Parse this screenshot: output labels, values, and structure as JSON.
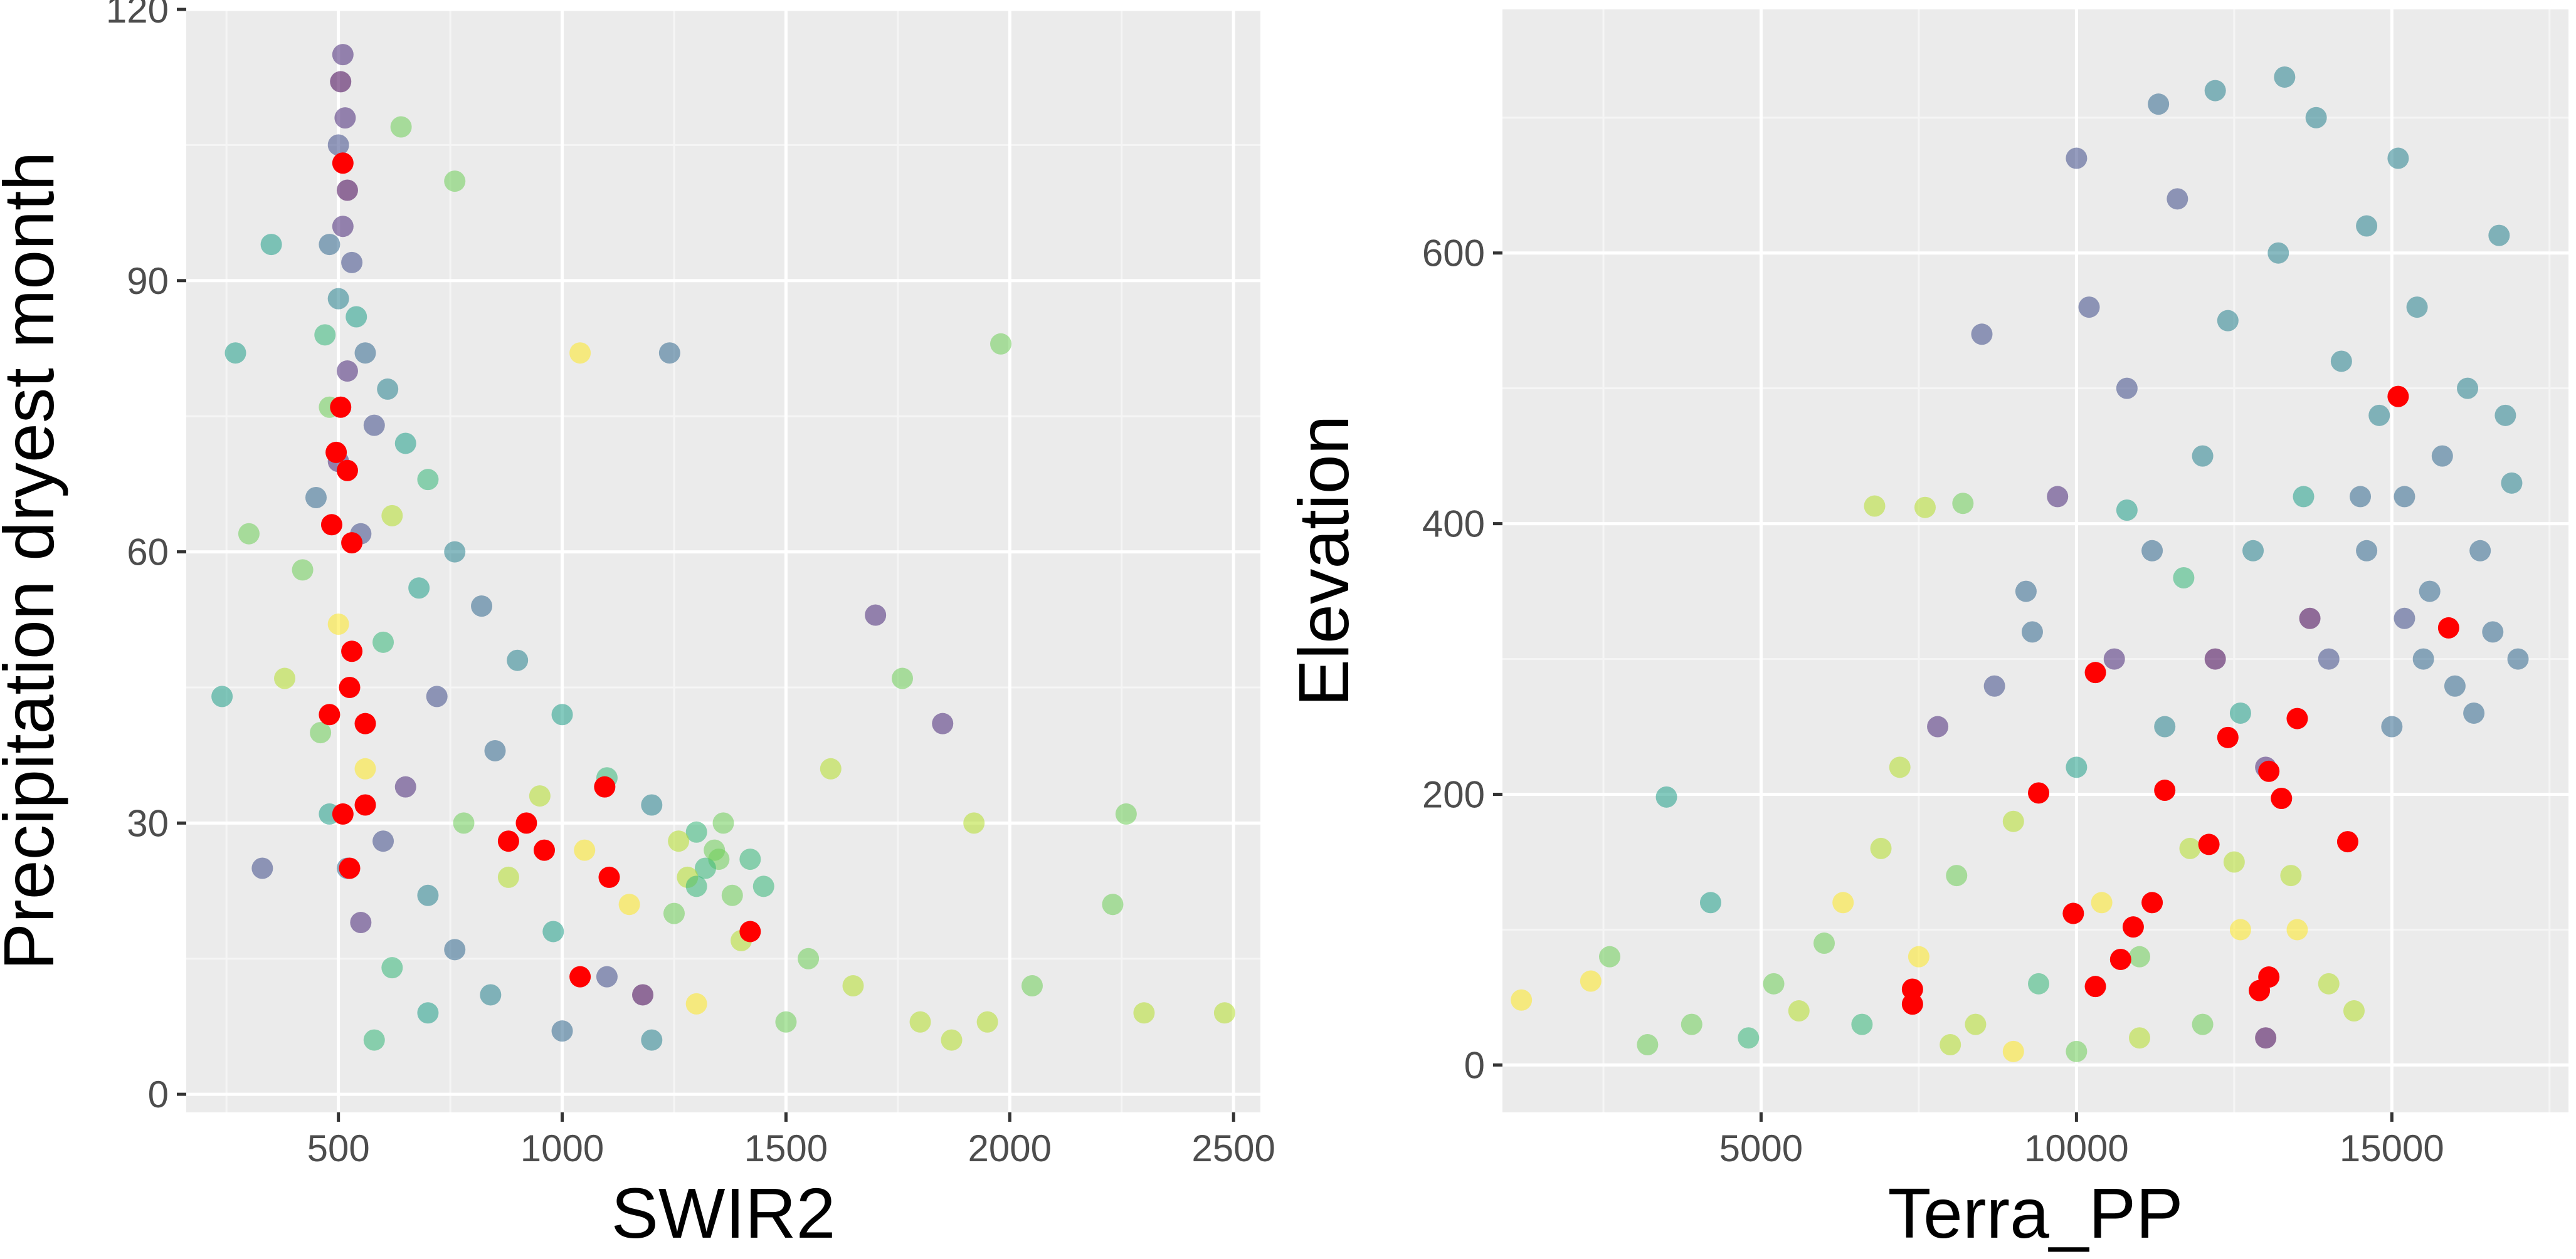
{
  "colors": {
    "panel_background": "#ebebeb",
    "grid_major": "#ffffff",
    "grid_minor": "#f5f5f5",
    "highlight_points": "#ff0000",
    "palette": "viridis",
    "viridis": [
      "#440154",
      "#482878",
      "#3e4a89",
      "#31688e",
      "#26828e",
      "#1f9e89",
      "#35b779",
      "#6ece58",
      "#b5de2b",
      "#fde725"
    ]
  },
  "chart_data": [
    {
      "type": "scatter",
      "title": "",
      "xlabel": "SWIR2",
      "ylabel": "Precipitation dryest month",
      "xlim": [
        160,
        2560
      ],
      "ylim": [
        -2,
        120
      ],
      "xticks": [
        500,
        1000,
        1500,
        2000,
        2500
      ],
      "yticks": [
        0,
        30,
        60,
        90,
        120
      ],
      "xtick_labels": [
        "500",
        "1000",
        "1500",
        "2000",
        "2500"
      ],
      "ytick_labels": [
        "0",
        "30",
        "60",
        "90",
        "120"
      ],
      "grid": true,
      "legend": "none",
      "point_style": "semi-transparent circles colored on a viridis scale (no color legend shown)",
      "background_points": [
        [
          510,
          115,
          1
        ],
        [
          505,
          112,
          0
        ],
        [
          515,
          108,
          1
        ],
        [
          500,
          105,
          2
        ],
        [
          520,
          100,
          0
        ],
        [
          510,
          96,
          1
        ],
        [
          480,
          94,
          3
        ],
        [
          530,
          92,
          2
        ],
        [
          500,
          88,
          4
        ],
        [
          540,
          86,
          5
        ],
        [
          470,
          84,
          6
        ],
        [
          560,
          82,
          3
        ],
        [
          520,
          80,
          1
        ],
        [
          610,
          78,
          4
        ],
        [
          480,
          76,
          7
        ],
        [
          580,
          74,
          2
        ],
        [
          650,
          72,
          5
        ],
        [
          500,
          70,
          1
        ],
        [
          700,
          68,
          6
        ],
        [
          450,
          66,
          3
        ],
        [
          620,
          64,
          8
        ],
        [
          550,
          62,
          2
        ],
        [
          760,
          60,
          4
        ],
        [
          420,
          58,
          7
        ],
        [
          680,
          56,
          5
        ],
        [
          820,
          54,
          3
        ],
        [
          500,
          52,
          9
        ],
        [
          600,
          50,
          6
        ],
        [
          900,
          48,
          4
        ],
        [
          380,
          46,
          8
        ],
        [
          720,
          44,
          2
        ],
        [
          1000,
          42,
          5
        ],
        [
          460,
          40,
          7
        ],
        [
          850,
          38,
          3
        ],
        [
          560,
          36,
          9
        ],
        [
          1100,
          35,
          6
        ],
        [
          650,
          34,
          1
        ],
        [
          950,
          33,
          8
        ],
        [
          1200,
          32,
          4
        ],
        [
          480,
          31,
          5
        ],
        [
          780,
          30,
          7
        ],
        [
          1300,
          29,
          6
        ],
        [
          600,
          28,
          2
        ],
        [
          1050,
          27,
          9
        ],
        [
          1350,
          26,
          7
        ],
        [
          520,
          25,
          3
        ],
        [
          880,
          24,
          8
        ],
        [
          1450,
          23,
          6
        ],
        [
          700,
          22,
          4
        ],
        [
          1150,
          21,
          9
        ],
        [
          1250,
          20,
          7
        ],
        [
          550,
          19,
          1
        ],
        [
          980,
          18,
          5
        ],
        [
          1400,
          17,
          8
        ],
        [
          760,
          16,
          3
        ],
        [
          1550,
          15,
          7
        ],
        [
          620,
          14,
          6
        ],
        [
          1100,
          13,
          2
        ],
        [
          1650,
          12,
          8
        ],
        [
          840,
          11,
          4
        ],
        [
          1300,
          10,
          9
        ],
        [
          700,
          9,
          5
        ],
        [
          1500,
          8,
          7
        ],
        [
          1000,
          7,
          3
        ],
        [
          1800,
          8,
          8
        ],
        [
          580,
          6,
          6
        ],
        [
          1200,
          6,
          4
        ],
        [
          1950,
          8,
          8
        ],
        [
          2050,
          12,
          7
        ],
        [
          2300,
          9,
          8
        ],
        [
          2480,
          9,
          8
        ],
        [
          2260,
          31,
          7
        ],
        [
          1980,
          83,
          7
        ],
        [
          1700,
          53,
          1
        ],
        [
          1850,
          41,
          1
        ],
        [
          240,
          44,
          5
        ],
        [
          300,
          62,
          7
        ],
        [
          270,
          82,
          5
        ],
        [
          1240,
          82,
          3
        ],
        [
          1040,
          82,
          9
        ],
        [
          350,
          94,
          5
        ],
        [
          640,
          107,
          7
        ],
        [
          760,
          101,
          7
        ],
        [
          1600,
          36,
          8
        ],
        [
          1760,
          46,
          7
        ],
        [
          1920,
          30,
          8
        ],
        [
          2230,
          21,
          7
        ],
        [
          1870,
          6,
          8
        ],
        [
          330,
          25,
          2
        ],
        [
          1180,
          11,
          0
        ],
        [
          1320,
          25,
          6
        ],
        [
          1340,
          27,
          7
        ],
        [
          1280,
          24,
          8
        ],
        [
          1380,
          22,
          7
        ],
        [
          1420,
          26,
          6
        ],
        [
          1260,
          28,
          8
        ],
        [
          1360,
          30,
          7
        ],
        [
          1300,
          23,
          6
        ]
      ],
      "highlight_points": [
        [
          510,
          103
        ],
        [
          505,
          76
        ],
        [
          520,
          69
        ],
        [
          495,
          71
        ],
        [
          485,
          63
        ],
        [
          530,
          61
        ],
        [
          530,
          49
        ],
        [
          525,
          45
        ],
        [
          560,
          41
        ],
        [
          480,
          42
        ],
        [
          510,
          31
        ],
        [
          560,
          32
        ],
        [
          525,
          25
        ],
        [
          880,
          28
        ],
        [
          920,
          30
        ],
        [
          960,
          27
        ],
        [
          1095,
          34
        ],
        [
          1105,
          24
        ],
        [
          1040,
          13
        ],
        [
          1420,
          18
        ]
      ]
    },
    {
      "type": "scatter",
      "title": "",
      "xlabel": "Terra_PP",
      "ylabel": "Elevation",
      "xlim": [
        900,
        17800
      ],
      "ylim": [
        -35,
        780
      ],
      "xticks": [
        5000,
        10000,
        15000
      ],
      "yticks": [
        0,
        200,
        400,
        600
      ],
      "xtick_labels": [
        "5000",
        "10000",
        "15000"
      ],
      "ytick_labels": [
        "0",
        "200",
        "400",
        "600"
      ],
      "grid": true,
      "legend": "none",
      "point_style": "semi-transparent circles colored on a viridis scale (no color legend shown)",
      "background_points": [
        [
          1200,
          48,
          9
        ],
        [
          2300,
          62,
          9
        ],
        [
          2600,
          80,
          7
        ],
        [
          3200,
          15,
          7
        ],
        [
          3500,
          198,
          5
        ],
        [
          3900,
          30,
          7
        ],
        [
          4200,
          120,
          5
        ],
        [
          4800,
          20,
          6
        ],
        [
          5200,
          60,
          7
        ],
        [
          5600,
          40,
          8
        ],
        [
          6000,
          90,
          7
        ],
        [
          6300,
          120,
          9
        ],
        [
          6600,
          30,
          6
        ],
        [
          6900,
          160,
          8
        ],
        [
          7200,
          220,
          8
        ],
        [
          7500,
          80,
          9
        ],
        [
          7800,
          250,
          1
        ],
        [
          8100,
          140,
          7
        ],
        [
          8400,
          30,
          8
        ],
        [
          8700,
          280,
          2
        ],
        [
          9000,
          180,
          8
        ],
        [
          9200,
          350,
          3
        ],
        [
          9400,
          60,
          6
        ],
        [
          9700,
          420,
          1
        ],
        [
          10000,
          220,
          5
        ],
        [
          10200,
          560,
          2
        ],
        [
          10400,
          120,
          9
        ],
        [
          10600,
          300,
          1
        ],
        [
          10800,
          500,
          2
        ],
        [
          11000,
          80,
          7
        ],
        [
          11200,
          380,
          3
        ],
        [
          11400,
          250,
          4
        ],
        [
          11600,
          640,
          2
        ],
        [
          11800,
          160,
          8
        ],
        [
          12000,
          450,
          4
        ],
        [
          12200,
          300,
          0
        ],
        [
          12400,
          550,
          4
        ],
        [
          12600,
          100,
          9
        ],
        [
          12800,
          380,
          4
        ],
        [
          13000,
          220,
          1
        ],
        [
          13200,
          600,
          4
        ],
        [
          13400,
          140,
          8
        ],
        [
          13600,
          420,
          5
        ],
        [
          13800,
          700,
          4
        ],
        [
          14000,
          300,
          2
        ],
        [
          14200,
          520,
          4
        ],
        [
          14400,
          40,
          8
        ],
        [
          14600,
          380,
          3
        ],
        [
          14800,
          480,
          4
        ],
        [
          15000,
          250,
          3
        ],
        [
          15200,
          420,
          3
        ],
        [
          15400,
          560,
          4
        ],
        [
          15600,
          350,
          3
        ],
        [
          15800,
          450,
          3
        ],
        [
          16000,
          280,
          3
        ],
        [
          16200,
          500,
          4
        ],
        [
          16400,
          380,
          3
        ],
        [
          16600,
          320,
          3
        ],
        [
          16800,
          480,
          4
        ],
        [
          17000,
          300,
          3
        ],
        [
          11000,
          20,
          8
        ],
        [
          12000,
          30,
          7
        ],
        [
          13000,
          20,
          0
        ],
        [
          14000,
          60,
          8
        ],
        [
          9000,
          10,
          9
        ],
        [
          8000,
          15,
          8
        ],
        [
          10000,
          10,
          7
        ],
        [
          12500,
          150,
          8
        ],
        [
          13500,
          100,
          9
        ],
        [
          7600,
          412,
          8
        ],
        [
          8200,
          415,
          7
        ],
        [
          6800,
          413,
          8
        ],
        [
          14600,
          620,
          4
        ],
        [
          13300,
          730,
          4
        ],
        [
          11300,
          710,
          3
        ],
        [
          10000,
          670,
          2
        ],
        [
          12200,
          720,
          4
        ],
        [
          15100,
          670,
          4
        ],
        [
          16700,
          613,
          4
        ],
        [
          8500,
          540,
          2
        ],
        [
          9300,
          320,
          3
        ],
        [
          10800,
          410,
          5
        ],
        [
          11700,
          360,
          6
        ],
        [
          12600,
          260,
          5
        ],
        [
          13700,
          330,
          0
        ],
        [
          14500,
          420,
          3
        ],
        [
          15500,
          300,
          3
        ],
        [
          16300,
          260,
          3
        ],
        [
          16900,
          430,
          4
        ],
        [
          15200,
          330,
          2
        ]
      ],
      "highlight_points": [
        [
          7400,
          56
        ],
        [
          7400,
          45
        ],
        [
          9400,
          201
        ],
        [
          9950,
          112
        ],
        [
          10300,
          58
        ],
        [
          10300,
          290
        ],
        [
          10700,
          78
        ],
        [
          10900,
          102
        ],
        [
          11200,
          120
        ],
        [
          11400,
          203
        ],
        [
          12100,
          163
        ],
        [
          12400,
          242
        ],
        [
          12900,
          55
        ],
        [
          13050,
          65
        ],
        [
          13050,
          217
        ],
        [
          13250,
          197
        ],
        [
          13500,
          256
        ],
        [
          14300,
          165
        ],
        [
          15100,
          494
        ],
        [
          15900,
          323
        ]
      ]
    }
  ]
}
